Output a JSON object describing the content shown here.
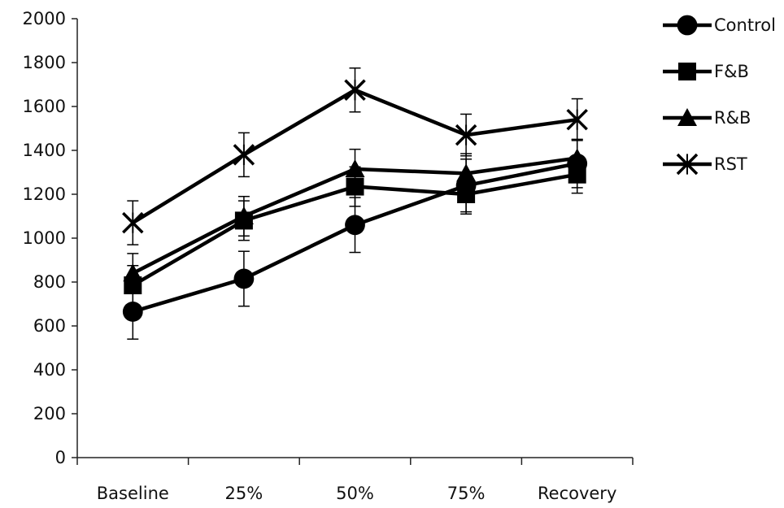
{
  "chart_data": {
    "type": "line",
    "title": "",
    "xlabel": "",
    "ylabel": "",
    "categories": [
      "Baseline",
      "25%",
      "50%",
      "75%",
      "Recovery"
    ],
    "ylim": [
      0,
      2000
    ],
    "yticks": [
      0,
      200,
      400,
      600,
      800,
      1000,
      1200,
      1400,
      1600,
      1800,
      2000
    ],
    "grid": false,
    "legend_position": "top-right",
    "series": [
      {
        "name": "Control",
        "marker": "circle",
        "values": [
          665,
          815,
          1060,
          1240,
          1340
        ],
        "errors": [
          125,
          125,
          125,
          120,
          110
        ]
      },
      {
        "name": "F&B",
        "marker": "square",
        "values": [
          785,
          1080,
          1235,
          1200,
          1290
        ],
        "errors": [
          90,
          90,
          90,
          90,
          85
        ]
      },
      {
        "name": "R&B",
        "marker": "triangle",
        "values": [
          840,
          1100,
          1315,
          1295,
          1365
        ],
        "errors": [
          90,
          90,
          90,
          90,
          85
        ]
      },
      {
        "name": "RST",
        "marker": "x",
        "values": [
          1070,
          1380,
          1675,
          1470,
          1540
        ],
        "errors": [
          100,
          100,
          100,
          95,
          95
        ]
      }
    ],
    "colors": {
      "line": "#000000",
      "axis": "#222222",
      "background": "#ffffff"
    }
  }
}
